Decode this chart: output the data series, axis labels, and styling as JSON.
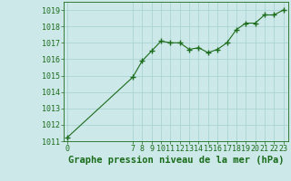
{
  "x": [
    0,
    7,
    8,
    9,
    10,
    11,
    12,
    13,
    14,
    15,
    16,
    17,
    18,
    19,
    20,
    21,
    22,
    23
  ],
  "y": [
    1011.2,
    1014.9,
    1015.9,
    1016.5,
    1017.1,
    1017.0,
    1017.0,
    1016.6,
    1016.7,
    1016.4,
    1016.6,
    1017.0,
    1017.8,
    1018.2,
    1018.2,
    1018.7,
    1018.7,
    1019.0
  ],
  "line_color": "#1a6b1a",
  "marker_color": "#1a6b1a",
  "bg_color": "#cce8e8",
  "grid_color": "#aad4d4",
  "title": "Graphe pression niveau de la mer (hPa)",
  "ylim": [
    1011,
    1019.5
  ],
  "yticks": [
    1011,
    1012,
    1013,
    1014,
    1015,
    1016,
    1017,
    1018,
    1019
  ],
  "xticks": [
    0,
    7,
    8,
    9,
    10,
    11,
    12,
    13,
    14,
    15,
    16,
    17,
    18,
    19,
    20,
    21,
    22,
    23
  ],
  "xlim": [
    -0.3,
    23.5
  ],
  "title_fontsize": 7.5,
  "tick_fontsize": 6
}
